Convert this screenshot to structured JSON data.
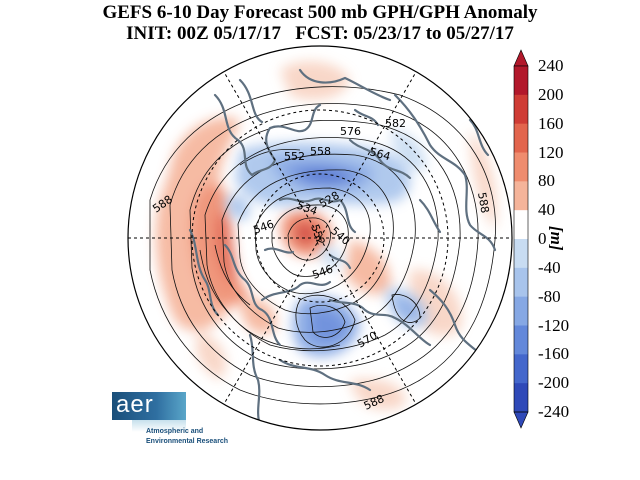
{
  "title": {
    "line1": "GEFS 6-10 Day Forecast 500 mb GPH/GPH Anomaly",
    "line2": "INIT: 00Z 05/17/17   FCST: 05/23/17 to 05/27/17"
  },
  "colorbar": {
    "unit": "[m]",
    "ticks": [
      "240",
      "200",
      "160",
      "120",
      "80",
      "40",
      "0",
      "-40",
      "-80",
      "-120",
      "-160",
      "-200",
      "-240"
    ],
    "colors": [
      "#b2182b",
      "#cf3c35",
      "#e2654d",
      "#ef8c6e",
      "#f5b49a",
      "#f8d3c2",
      "#ffffff",
      "#c8dcf2",
      "#a8c4ec",
      "#86a8e4",
      "#6388da",
      "#4467cc",
      "#2f49b8"
    ]
  },
  "contour_labels": [
    {
      "text": "588"
    },
    {
      "text": "576"
    },
    {
      "text": "582"
    },
    {
      "text": "552"
    },
    {
      "text": "558"
    },
    {
      "text": "564"
    },
    {
      "text": "588"
    },
    {
      "text": "546"
    },
    {
      "text": "534"
    },
    {
      "text": "528"
    },
    {
      "text": "552"
    },
    {
      "text": "540"
    },
    {
      "text": "546"
    },
    {
      "text": "570"
    },
    {
      "text": "588"
    }
  ],
  "logo": {
    "name": "aer",
    "line1": "Atmospheric and",
    "line2": "Environmental Research"
  },
  "colors": {
    "land_outline": "#5f7080",
    "warm_anomaly": "#e2654d",
    "cold_anomaly": "#4467cc"
  }
}
